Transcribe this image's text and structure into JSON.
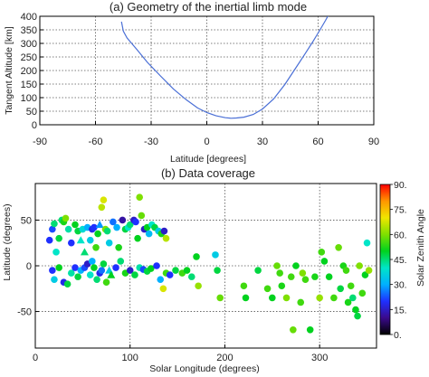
{
  "chart_data": [
    {
      "type": "line",
      "title": "(a) Geometry of the inertial limb mode",
      "xlabel": "Latitude [degrees]",
      "ylabel": "Tangent Altitude [km]",
      "xlim": [
        -90,
        90
      ],
      "ylim": [
        0,
        400
      ],
      "xticks": [
        -90,
        -60,
        -30,
        0,
        30,
        60,
        90
      ],
      "yticks": [
        0,
        50,
        100,
        150,
        200,
        250,
        300,
        350,
        400
      ],
      "grid": true,
      "line_color": "#4a6fd6",
      "series": [
        {
          "x": [
            -46,
            -45,
            -43,
            -38,
            -32,
            -25,
            -18,
            -11,
            -5,
            0,
            5,
            10,
            13,
            16,
            20,
            25,
            30,
            36,
            42,
            48,
            53,
            57,
            61,
            64,
            66
          ],
          "y": [
            380,
            345,
            320,
            280,
            230,
            180,
            132,
            92,
            62,
            45,
            33,
            26,
            24,
            25,
            28,
            38,
            58,
            95,
            148,
            210,
            262,
            305,
            350,
            385,
            410
          ]
        }
      ]
    },
    {
      "type": "scatter",
      "title": "(b) Data coverage",
      "xlabel": "Solar Longitude (degrees)",
      "ylabel": "Latitude (degrees)",
      "xlim": [
        0,
        360
      ],
      "ylim": [
        -90,
        90
      ],
      "xticks": [
        0,
        100,
        200,
        300
      ],
      "yticks": [
        -50,
        0,
        50
      ],
      "grid": true,
      "colorbar": {
        "label": "Solar Zenith Angle",
        "min": 0,
        "max": 90,
        "ticks": [
          0,
          15,
          30,
          45,
          60,
          75,
          90
        ],
        "tick_labels": [
          "0.",
          "15.",
          "30.",
          "45.",
          "60.",
          "75.",
          "90."
        ],
        "colors": [
          "#000000",
          "#3a0a8c",
          "#1f30ff",
          "#00b0ff",
          "#00e5c8",
          "#00d21e",
          "#7fe000",
          "#f0e600",
          "#ff9600",
          "#ff0000"
        ]
      },
      "points": [
        {
          "x": 15,
          "y": 28,
          "z": 20,
          "m": "o"
        },
        {
          "x": 18,
          "y": 40,
          "z": 22,
          "m": "o"
        },
        {
          "x": 20,
          "y": 46,
          "z": 45,
          "m": "o"
        },
        {
          "x": 22,
          "y": 15,
          "z": 40,
          "m": "o"
        },
        {
          "x": 25,
          "y": 30,
          "z": 48,
          "m": "o"
        },
        {
          "x": 28,
          "y": 50,
          "z": 45,
          "m": "o"
        },
        {
          "x": 30,
          "y": 48,
          "z": 52,
          "m": "o"
        },
        {
          "x": 32,
          "y": 52,
          "z": 60,
          "m": "o"
        },
        {
          "x": 35,
          "y": 40,
          "z": 42,
          "m": "o"
        },
        {
          "x": 38,
          "y": 25,
          "z": 20,
          "m": "o"
        },
        {
          "x": 42,
          "y": 45,
          "z": 50,
          "m": "o"
        },
        {
          "x": 45,
          "y": 38,
          "z": 48,
          "m": "o"
        },
        {
          "x": 48,
          "y": 28,
          "z": 40,
          "m": "tri"
        },
        {
          "x": 50,
          "y": 40,
          "z": 38,
          "m": "o"
        },
        {
          "x": 52,
          "y": 15,
          "z": 45,
          "m": "tri"
        },
        {
          "x": 55,
          "y": 42,
          "z": 30,
          "m": "o"
        },
        {
          "x": 58,
          "y": 28,
          "z": 35,
          "m": "o"
        },
        {
          "x": 60,
          "y": 40,
          "z": 18,
          "m": "o"
        },
        {
          "x": 62,
          "y": 42,
          "z": 20,
          "m": "o"
        },
        {
          "x": 64,
          "y": 20,
          "z": 55,
          "m": "o"
        },
        {
          "x": 66,
          "y": 35,
          "z": 50,
          "m": "o"
        },
        {
          "x": 68,
          "y": 45,
          "z": 28,
          "m": "tri"
        },
        {
          "x": 70,
          "y": 64,
          "z": 65,
          "m": "o"
        },
        {
          "x": 72,
          "y": 72,
          "z": 68,
          "m": "o"
        },
        {
          "x": 74,
          "y": 40,
          "z": 60,
          "m": "o"
        },
        {
          "x": 76,
          "y": 38,
          "z": 45,
          "m": "o"
        },
        {
          "x": 78,
          "y": 25,
          "z": 35,
          "m": "o"
        },
        {
          "x": 82,
          "y": 48,
          "z": 25,
          "m": "o"
        },
        {
          "x": 86,
          "y": 42,
          "z": 30,
          "m": "o"
        },
        {
          "x": 88,
          "y": 20,
          "z": 52,
          "m": "o"
        },
        {
          "x": 92,
          "y": 50,
          "z": 12,
          "m": "o"
        },
        {
          "x": 95,
          "y": 40,
          "z": 48,
          "m": "o"
        },
        {
          "x": 98,
          "y": 42,
          "z": 40,
          "m": "o"
        },
        {
          "x": 100,
          "y": 45,
          "z": 45,
          "m": "o"
        },
        {
          "x": 104,
          "y": 50,
          "z": 15,
          "m": "o"
        },
        {
          "x": 106,
          "y": 48,
          "z": 20,
          "m": "o"
        },
        {
          "x": 108,
          "y": 30,
          "z": 50,
          "m": "o"
        },
        {
          "x": 110,
          "y": 75,
          "z": 60,
          "m": "o"
        },
        {
          "x": 112,
          "y": 55,
          "z": 58,
          "m": "o"
        },
        {
          "x": 115,
          "y": 40,
          "z": 15,
          "m": "o"
        },
        {
          "x": 118,
          "y": 42,
          "z": 50,
          "m": "o"
        },
        {
          "x": 120,
          "y": 35,
          "z": 32,
          "m": "o"
        },
        {
          "x": 123,
          "y": 45,
          "z": 40,
          "m": "o"
        },
        {
          "x": 126,
          "y": 42,
          "z": 48,
          "m": "o"
        },
        {
          "x": 130,
          "y": 38,
          "z": 35,
          "m": "o"
        },
        {
          "x": 133,
          "y": 35,
          "z": 52,
          "m": "o"
        },
        {
          "x": 136,
          "y": 38,
          "z": 15,
          "m": "o"
        },
        {
          "x": 138,
          "y": 30,
          "z": 65,
          "m": "o"
        },
        {
          "x": 18,
          "y": -5,
          "z": 20,
          "m": "o"
        },
        {
          "x": 20,
          "y": -15,
          "z": 35,
          "m": "o"
        },
        {
          "x": 25,
          "y": -2,
          "z": 50,
          "m": "o"
        },
        {
          "x": 30,
          "y": -18,
          "z": 18,
          "m": "o"
        },
        {
          "x": 34,
          "y": -20,
          "z": 48,
          "m": "o"
        },
        {
          "x": 38,
          "y": -8,
          "z": 42,
          "m": "o"
        },
        {
          "x": 42,
          "y": -2,
          "z": 20,
          "m": "o"
        },
        {
          "x": 45,
          "y": -12,
          "z": 48,
          "m": "o"
        },
        {
          "x": 48,
          "y": -5,
          "z": 30,
          "m": "o"
        },
        {
          "x": 52,
          "y": -2,
          "z": 22,
          "m": "o"
        },
        {
          "x": 55,
          "y": 2,
          "z": 15,
          "m": "o"
        },
        {
          "x": 58,
          "y": -10,
          "z": 40,
          "m": "o"
        },
        {
          "x": 60,
          "y": 5,
          "z": 30,
          "m": "o"
        },
        {
          "x": 62,
          "y": -2,
          "z": 50,
          "m": "o"
        },
        {
          "x": 65,
          "y": -15,
          "z": 45,
          "m": "o"
        },
        {
          "x": 68,
          "y": -8,
          "z": 18,
          "m": "o"
        },
        {
          "x": 70,
          "y": -5,
          "z": 25,
          "m": "o"
        },
        {
          "x": 72,
          "y": 2,
          "z": 48,
          "m": "o"
        },
        {
          "x": 75,
          "y": -18,
          "z": 55,
          "m": "o"
        },
        {
          "x": 78,
          "y": -5,
          "z": 35,
          "m": "tri"
        },
        {
          "x": 80,
          "y": -10,
          "z": 50,
          "m": "tri"
        },
        {
          "x": 85,
          "y": -2,
          "z": 20,
          "m": "o"
        },
        {
          "x": 90,
          "y": 5,
          "z": 45,
          "m": "o"
        },
        {
          "x": 95,
          "y": -8,
          "z": 52,
          "m": "o"
        },
        {
          "x": 100,
          "y": -5,
          "z": 15,
          "m": "o"
        },
        {
          "x": 105,
          "y": -10,
          "z": 48,
          "m": "o"
        },
        {
          "x": 110,
          "y": -2,
          "z": 42,
          "m": "o"
        },
        {
          "x": 114,
          "y": -4,
          "z": 22,
          "m": "o"
        },
        {
          "x": 118,
          "y": -6,
          "z": 48,
          "m": "o"
        },
        {
          "x": 122,
          "y": -3,
          "z": 50,
          "m": "o"
        },
        {
          "x": 128,
          "y": 0,
          "z": 20,
          "m": "o"
        },
        {
          "x": 132,
          "y": -15,
          "z": 30,
          "m": "o"
        },
        {
          "x": 135,
          "y": -25,
          "z": 68,
          "m": "o"
        },
        {
          "x": 138,
          "y": -8,
          "z": 55,
          "m": "o"
        },
        {
          "x": 142,
          "y": -10,
          "z": 20,
          "m": "o"
        },
        {
          "x": 148,
          "y": -5,
          "z": 48,
          "m": "o"
        },
        {
          "x": 155,
          "y": -8,
          "z": 55,
          "m": "o"
        },
        {
          "x": 160,
          "y": -5,
          "z": 50,
          "m": "o"
        },
        {
          "x": 165,
          "y": -12,
          "z": 45,
          "m": "o"
        },
        {
          "x": 170,
          "y": 10,
          "z": 50,
          "m": "o"
        },
        {
          "x": 172,
          "y": -22,
          "z": 62,
          "m": "o"
        },
        {
          "x": 190,
          "y": 12,
          "z": 35,
          "m": "o"
        },
        {
          "x": 192,
          "y": -5,
          "z": 48,
          "m": "o"
        },
        {
          "x": 195,
          "y": -35,
          "z": 58,
          "m": "o"
        },
        {
          "x": 220,
          "y": -22,
          "z": 55,
          "m": "o"
        },
        {
          "x": 222,
          "y": -35,
          "z": 50,
          "m": "o"
        },
        {
          "x": 235,
          "y": -5,
          "z": 48,
          "m": "o"
        },
        {
          "x": 245,
          "y": -25,
          "z": 55,
          "m": "o"
        },
        {
          "x": 250,
          "y": -35,
          "z": 50,
          "m": "o"
        },
        {
          "x": 255,
          "y": 0,
          "z": 58,
          "m": "o"
        },
        {
          "x": 258,
          "y": -8,
          "z": 55,
          "m": "o"
        },
        {
          "x": 260,
          "y": -22,
          "z": 52,
          "m": "o"
        },
        {
          "x": 265,
          "y": -35,
          "z": 60,
          "m": "o"
        },
        {
          "x": 270,
          "y": -12,
          "z": 55,
          "m": "o"
        },
        {
          "x": 272,
          "y": -70,
          "z": 58,
          "m": "o"
        },
        {
          "x": 275,
          "y": 0,
          "z": 50,
          "m": "o"
        },
        {
          "x": 280,
          "y": -40,
          "z": 55,
          "m": "o"
        },
        {
          "x": 282,
          "y": -8,
          "z": 60,
          "m": "o"
        },
        {
          "x": 285,
          "y": -15,
          "z": 55,
          "m": "o"
        },
        {
          "x": 290,
          "y": -70,
          "z": 50,
          "m": "o"
        },
        {
          "x": 295,
          "y": -12,
          "z": 52,
          "m": "o"
        },
        {
          "x": 300,
          "y": -35,
          "z": 62,
          "m": "o"
        },
        {
          "x": 302,
          "y": 15,
          "z": 55,
          "m": "o"
        },
        {
          "x": 305,
          "y": 5,
          "z": 50,
          "m": "o"
        },
        {
          "x": 310,
          "y": -12,
          "z": 50,
          "m": "o"
        },
        {
          "x": 315,
          "y": -35,
          "z": 55,
          "m": "o"
        },
        {
          "x": 320,
          "y": 20,
          "z": 58,
          "m": "o"
        },
        {
          "x": 322,
          "y": -25,
          "z": 48,
          "m": "o"
        },
        {
          "x": 325,
          "y": 0,
          "z": 52,
          "m": "o"
        },
        {
          "x": 328,
          "y": -5,
          "z": 55,
          "m": "o"
        },
        {
          "x": 330,
          "y": -40,
          "z": 52,
          "m": "o"
        },
        {
          "x": 333,
          "y": -22,
          "z": 55,
          "m": "o"
        },
        {
          "x": 335,
          "y": -35,
          "z": 45,
          "m": "o"
        },
        {
          "x": 338,
          "y": -48,
          "z": 50,
          "m": "o"
        },
        {
          "x": 340,
          "y": -55,
          "z": 48,
          "m": "o"
        },
        {
          "x": 342,
          "y": 0,
          "z": 60,
          "m": "o"
        },
        {
          "x": 345,
          "y": -30,
          "z": 55,
          "m": "o"
        },
        {
          "x": 348,
          "y": -10,
          "z": 50,
          "m": "o"
        },
        {
          "x": 350,
          "y": 25,
          "z": 40,
          "m": "o"
        },
        {
          "x": 352,
          "y": -5,
          "z": 62,
          "m": "o"
        }
      ]
    }
  ]
}
